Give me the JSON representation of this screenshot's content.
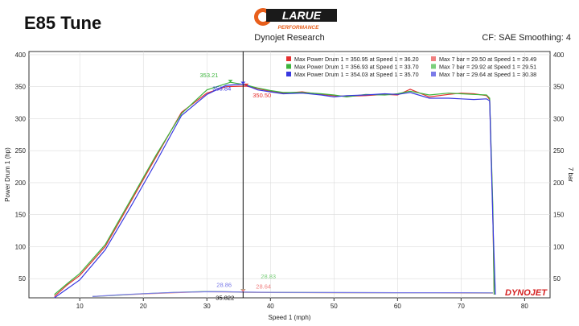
{
  "header": {
    "title": "E85 Tune",
    "brand": "LARUE",
    "brand_sub": "PERFORMANCE",
    "subtitle": "Dynojet Research",
    "settings": "CF: SAE Smoothing: 4",
    "watermark": "DYNOJET"
  },
  "colors": {
    "red": "#e53030",
    "green": "#3cb43c",
    "blue": "#3838e0",
    "pink": "#f08080",
    "lightgreen": "#7ccf7c",
    "lightblue": "#7a7ae8"
  },
  "chart_data": {
    "type": "line",
    "xlabel": "Speed 1 (mph)",
    "ylabel": "Power Drum 1 (hp)",
    "ylabel_right": "7 bar",
    "xlim": [
      2,
      84
    ],
    "ylim": [
      20,
      405
    ],
    "xticks": [
      10,
      20,
      30,
      40,
      50,
      60,
      70,
      80
    ],
    "yticks": [
      50,
      100,
      150,
      200,
      250,
      300,
      350,
      400
    ],
    "grid": true,
    "cursor_x": 35.7,
    "legend": [
      {
        "color": "red",
        "text": "Max Power Drum 1 = 350.95 at Speed 1 = 36.20"
      },
      {
        "color": "green",
        "text": "Max Power Drum 1 = 356.93 at Speed 1 = 33.70"
      },
      {
        "color": "blue",
        "text": "Max Power Drum 1 = 354.03 at Speed 1 = 35.70"
      },
      {
        "color": "pink",
        "text": "Max 7 bar = 29.50 at Speed 1 = 29.49"
      },
      {
        "color": "lightgreen",
        "text": "Max 7 bar = 29.92 at Speed 1 = 29.51"
      },
      {
        "color": "lightblue",
        "text": "Max 7 bar = 29.64 at Speed 1 = 30.38"
      }
    ],
    "annotations": [
      {
        "text": "353.21",
        "color": "green",
        "x": 33.7,
        "y": 356.9
      },
      {
        "text": "353.84",
        "color": "blue",
        "x": 35.7,
        "y": 354.0
      },
      {
        "text": "350.50",
        "color": "red",
        "x": 36.2,
        "y": 351.0
      },
      {
        "text": "28.86",
        "color": "lightblue",
        "x": 35.7,
        "y": 29.6
      },
      {
        "text": "35.822",
        "color": "black",
        "x": 35.7,
        "y": 29.6
      },
      {
        "text": "28.83",
        "color": "lightgreen",
        "x": 35.7,
        "y": 29.9
      },
      {
        "text": "28.64",
        "color": "pink",
        "x": 35.7,
        "y": 29.5
      }
    ],
    "series": [
      {
        "color": "red",
        "x": [
          6,
          8,
          10,
          14,
          18,
          22,
          26,
          30,
          33,
          36.2,
          38,
          40,
          42,
          45,
          48,
          50,
          52,
          55,
          58,
          60,
          62,
          65,
          68,
          70,
          72,
          74,
          74.5,
          75,
          75.2
        ],
        "y": [
          22,
          40,
          55,
          100,
          170,
          240,
          310,
          340,
          350,
          351,
          347,
          343,
          340,
          342,
          338,
          336,
          335,
          336,
          338,
          337,
          346,
          334,
          338,
          340,
          339,
          336,
          330,
          150,
          25
        ]
      },
      {
        "color": "green",
        "x": [
          6,
          8,
          10,
          14,
          18,
          22,
          26,
          30,
          33.7,
          36,
          38,
          40,
          42,
          45,
          48,
          50,
          52,
          55,
          58,
          60,
          62,
          65,
          68,
          70,
          72,
          74,
          74.5,
          75,
          75.2
        ],
        "y": [
          25,
          42,
          58,
          103,
          173,
          243,
          308,
          345,
          357,
          353,
          348,
          344,
          341,
          341,
          339,
          337,
          334,
          338,
          337,
          339,
          343,
          337,
          340,
          339,
          338,
          337,
          332,
          160,
          25
        ]
      },
      {
        "color": "blue",
        "x": [
          6,
          8,
          10,
          14,
          18,
          22,
          26,
          30,
          33,
          35.7,
          38,
          40,
          42,
          45,
          48,
          50,
          52,
          55,
          58,
          60,
          62,
          65,
          68,
          70,
          72,
          74,
          74.5,
          75,
          75.4
        ],
        "y": [
          20,
          34,
          48,
          95,
          162,
          232,
          305,
          338,
          352,
          354,
          345,
          342,
          339,
          340,
          337,
          334,
          336,
          337,
          339,
          338,
          341,
          332,
          332,
          331,
          330,
          331,
          328,
          140,
          25
        ]
      },
      {
        "color": "pink",
        "x": [
          12,
          16,
          20,
          25,
          29.5,
          33,
          36,
          40,
          50,
          60,
          70,
          75
        ],
        "y": [
          22,
          24,
          26,
          28,
          29.5,
          29.3,
          28.6,
          28.3,
          28.0,
          27.8,
          27.6,
          27.4
        ]
      },
      {
        "color": "lightgreen",
        "x": [
          12,
          16,
          20,
          25,
          29.5,
          33,
          36,
          40,
          50,
          60,
          70,
          75
        ],
        "y": [
          22,
          24,
          26.5,
          28.5,
          29.9,
          29.6,
          28.8,
          28.5,
          28.2,
          28.0,
          27.9,
          27.7
        ]
      },
      {
        "color": "lightblue",
        "x": [
          12,
          16,
          20,
          25,
          30.4,
          33,
          36,
          40,
          50,
          60,
          70,
          75
        ],
        "y": [
          22,
          24.5,
          26.5,
          28.6,
          29.6,
          29.4,
          28.9,
          28.6,
          28.3,
          28.1,
          28.0,
          27.8
        ]
      }
    ]
  }
}
